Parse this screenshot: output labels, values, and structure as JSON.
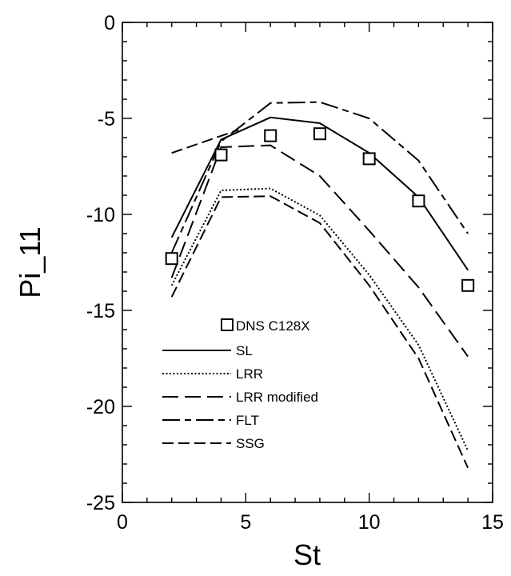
{
  "chart_data": {
    "type": "line",
    "title": "",
    "xlabel": "St",
    "ylabel": "Pi_11",
    "xlim": [
      0,
      15
    ],
    "ylim": [
      -25,
      0
    ],
    "xticks": [
      0,
      5,
      10,
      15
    ],
    "yticks": [
      0,
      -5,
      -10,
      -15,
      -20,
      -25
    ],
    "xtick_labels": [
      "0",
      "5",
      "10",
      "15"
    ],
    "ytick_labels": [
      "0",
      "-5",
      "-10",
      "-15",
      "-20",
      "-25"
    ],
    "grid": false,
    "legend_position": "lower-left",
    "markers": [
      {
        "name": "DNS C128X",
        "marker": "open-square",
        "x": [
          2,
          4,
          6,
          8,
          10,
          12,
          14
        ],
        "y": [
          -12.3,
          -6.9,
          -5.9,
          -5.8,
          -7.1,
          -9.3,
          -13.7
        ]
      }
    ],
    "series": [
      {
        "name": "SL",
        "style": "solid",
        "x": [
          2,
          4,
          6,
          8,
          10,
          12,
          14
        ],
        "y": [
          -11.2,
          -6.1,
          -4.95,
          -5.25,
          -6.8,
          -9.1,
          -12.9
        ]
      },
      {
        "name": "LRR",
        "style": "dotted",
        "x": [
          2,
          4,
          6,
          8,
          10,
          12,
          14
        ],
        "y": [
          -13.7,
          -8.75,
          -8.65,
          -10.05,
          -13.15,
          -16.8,
          -22.3
        ]
      },
      {
        "name": "LRR modified",
        "style": "long-dash",
        "x": [
          2,
          4,
          6,
          8,
          10,
          12,
          14
        ],
        "y": [
          -13.3,
          -6.5,
          -6.4,
          -8.0,
          -10.85,
          -13.8,
          -17.4
        ]
      },
      {
        "name": "FLT",
        "style": "dash-dot",
        "x": [
          2,
          4,
          6,
          8,
          10,
          12,
          14
        ],
        "y": [
          -12.0,
          -6.2,
          -4.2,
          -4.15,
          -5.0,
          -7.2,
          -11.0
        ]
      },
      {
        "name": "SSG",
        "style": "medium-dash",
        "x": [
          2,
          4,
          6,
          8,
          10,
          12,
          14
        ],
        "y": [
          -14.3,
          -9.1,
          -9.05,
          -10.45,
          -13.7,
          -17.5,
          -23.2
        ]
      },
      {
        "name": "",
        "style": "medium-dash",
        "x": [
          2,
          4.7
        ],
        "y": [
          -6.8,
          -5.6
        ]
      }
    ]
  }
}
